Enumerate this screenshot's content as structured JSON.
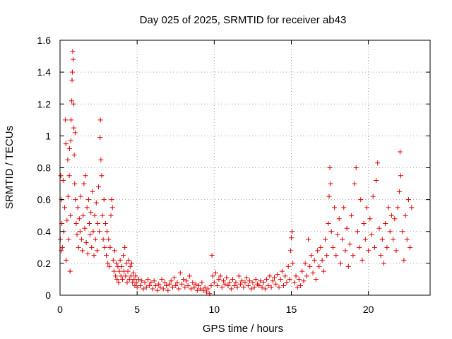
{
  "chart_data": {
    "type": "scatter",
    "title": "Day 025 of 2025, SRMTID for receiver ab43",
    "xlabel": "GPS time / hours",
    "ylabel": "SRMTID / TECUs",
    "xlim": [
      0,
      24
    ],
    "ylim": [
      0,
      1.6
    ],
    "xticks": [
      0,
      5,
      10,
      15,
      20
    ],
    "xtick_labels": [
      "0",
      "5",
      "10",
      "15",
      "20"
    ],
    "yticks": [
      0,
      0.2,
      0.4,
      0.6,
      0.8,
      1,
      1.2,
      1.4,
      1.6
    ],
    "ytick_labels": [
      "0",
      "0.2",
      "0.4",
      "0.6",
      "0.8",
      "1",
      "1.2",
      "1.4",
      "1.6"
    ],
    "grid": true,
    "marker": "plus",
    "color": "#e00000",
    "series": [
      {
        "name": "SRMTID",
        "points": [
          [
            0.02,
            0.35
          ],
          [
            0.05,
            0.75
          ],
          [
            0.08,
            0.28
          ],
          [
            0.1,
            0.6
          ],
          [
            0.12,
            0.45
          ],
          [
            0.15,
            0.3
          ],
          [
            0.2,
            0.72
          ],
          [
            0.25,
            0.4
          ],
          [
            0.3,
            0.55
          ],
          [
            0.35,
            1.1
          ],
          [
            0.38,
            0.95
          ],
          [
            0.4,
            0.22
          ],
          [
            0.45,
            0.47
          ],
          [
            0.5,
            0.85
          ],
          [
            0.52,
            0.62
          ],
          [
            0.55,
            0.35
          ],
          [
            0.6,
            0.75
          ],
          [
            0.62,
            0.92
          ],
          [
            0.65,
            0.15
          ],
          [
            0.68,
            0.5
          ],
          [
            0.7,
            0.97
          ],
          [
            0.72,
            1.1
          ],
          [
            0.75,
            1.22
          ],
          [
            0.78,
            1.35
          ],
          [
            0.8,
            1.4
          ],
          [
            0.82,
            1.53
          ],
          [
            0.85,
            1.48
          ],
          [
            0.88,
            1.2
          ],
          [
            0.9,
            1.05
          ],
          [
            0.92,
            0.88
          ],
          [
            0.95,
            0.7
          ],
          [
            0.98,
            1.02
          ],
          [
            1.0,
            0.6
          ],
          [
            1.05,
            0.45
          ],
          [
            1.1,
            0.38
          ],
          [
            1.15,
            0.55
          ],
          [
            1.2,
            0.3
          ],
          [
            1.25,
            0.48
          ],
          [
            1.3,
            0.4
          ],
          [
            1.35,
            0.62
          ],
          [
            1.4,
            0.35
          ],
          [
            1.45,
            0.28
          ],
          [
            1.5,
            0.5
          ],
          [
            1.55,
            0.7
          ],
          [
            1.6,
            0.42
          ],
          [
            1.65,
            0.75
          ],
          [
            1.7,
            0.33
          ],
          [
            1.75,
            0.55
          ],
          [
            1.8,
            0.26
          ],
          [
            1.85,
            0.6
          ],
          [
            1.9,
            0.45
          ],
          [
            1.95,
            0.38
          ],
          [
            2.0,
            0.52
          ],
          [
            2.05,
            0.3
          ],
          [
            2.1,
            0.65
          ],
          [
            2.15,
            0.4
          ],
          [
            2.2,
            0.25
          ],
          [
            2.25,
            0.5
          ],
          [
            2.3,
            0.35
          ],
          [
            2.35,
            0.58
          ],
          [
            2.4,
            0.28
          ],
          [
            2.45,
            0.45
          ],
          [
            2.5,
            0.68
          ],
          [
            2.55,
            0.4
          ],
          [
            2.6,
            0.99
          ],
          [
            2.62,
            1.1
          ],
          [
            2.65,
            0.85
          ],
          [
            2.7,
            0.75
          ],
          [
            2.75,
            0.5
          ],
          [
            2.8,
            0.35
          ],
          [
            2.85,
            0.6
          ],
          [
            2.9,
            0.3
          ],
          [
            2.95,
            0.45
          ],
          [
            3.0,
            0.25
          ],
          [
            3.05,
            0.4
          ],
          [
            3.1,
            0.2
          ],
          [
            3.15,
            0.35
          ],
          [
            3.2,
            0.18
          ],
          [
            3.25,
            0.3
          ],
          [
            3.3,
            0.5
          ],
          [
            3.35,
            0.6
          ],
          [
            3.4,
            0.55
          ],
          [
            3.45,
            0.22
          ],
          [
            3.5,
            0.15
          ],
          [
            3.55,
            0.28
          ],
          [
            3.6,
            0.12
          ],
          [
            3.65,
            0.2
          ],
          [
            3.7,
            0.1
          ],
          [
            3.75,
            0.18
          ],
          [
            3.8,
            0.08
          ],
          [
            3.85,
            0.15
          ],
          [
            3.9,
            0.22
          ],
          [
            3.95,
            0.12
          ],
          [
            4.0,
            0.18
          ],
          [
            4.05,
            0.1
          ],
          [
            4.1,
            0.25
          ],
          [
            4.15,
            0.15
          ],
          [
            4.2,
            0.3
          ],
          [
            4.25,
            0.12
          ],
          [
            4.3,
            0.2
          ],
          [
            4.35,
            0.08
          ],
          [
            4.4,
            0.15
          ],
          [
            4.45,
            0.22
          ],
          [
            4.5,
            0.1
          ],
          [
            4.55,
            0.18
          ],
          [
            4.6,
            0.12
          ],
          [
            4.65,
            0.2
          ],
          [
            4.7,
            0.08
          ],
          [
            4.75,
            0.14
          ],
          [
            4.8,
            0.1
          ],
          [
            4.85,
            0.06
          ],
          [
            4.9,
            0.12
          ],
          [
            4.95,
            0.08
          ],
          [
            5.0,
            0.05
          ],
          [
            5.1,
            0.1
          ],
          [
            5.2,
            0.06
          ],
          [
            5.3,
            0.09
          ],
          [
            5.4,
            0.04
          ],
          [
            5.5,
            0.08
          ],
          [
            5.6,
            0.05
          ],
          [
            5.7,
            0.1
          ],
          [
            5.8,
            0.06
          ],
          [
            5.9,
            0.08
          ],
          [
            6.0,
            0.04
          ],
          [
            6.1,
            0.09
          ],
          [
            6.2,
            0.06
          ],
          [
            6.3,
            0.03
          ],
          [
            6.4,
            0.07
          ],
          [
            6.5,
            0.05
          ],
          [
            6.6,
            0.1
          ],
          [
            6.7,
            0.04
          ],
          [
            6.8,
            0.08
          ],
          [
            6.9,
            0.06
          ],
          [
            7.0,
            0.03
          ],
          [
            7.1,
            0.07
          ],
          [
            7.2,
            0.09
          ],
          [
            7.3,
            0.05
          ],
          [
            7.4,
            0.11
          ],
          [
            7.5,
            0.06
          ],
          [
            7.6,
            0.08
          ],
          [
            7.7,
            0.04
          ],
          [
            7.8,
            0.14
          ],
          [
            7.9,
            0.07
          ],
          [
            8.0,
            0.1
          ],
          [
            8.1,
            0.05
          ],
          [
            8.2,
            0.09
          ],
          [
            8.3,
            0.06
          ],
          [
            8.4,
            0.12
          ],
          [
            8.5,
            0.04
          ],
          [
            8.6,
            0.08
          ],
          [
            8.7,
            0.05
          ],
          [
            8.8,
            0.07
          ],
          [
            8.9,
            0.03
          ],
          [
            9.0,
            0.06
          ],
          [
            9.1,
            0.04
          ],
          [
            9.2,
            0.08
          ],
          [
            9.3,
            0.03
          ],
          [
            9.4,
            0.05
          ],
          [
            9.5,
            0.02
          ],
          [
            9.6,
            0.04
          ],
          [
            9.7,
            0.01
          ],
          [
            9.8,
            0.06
          ],
          [
            9.85,
            0.25
          ],
          [
            9.9,
            0.12
          ],
          [
            10.0,
            0.08
          ],
          [
            10.1,
            0.14
          ],
          [
            10.2,
            0.06
          ],
          [
            10.3,
            0.1
          ],
          [
            10.4,
            0.12
          ],
          [
            10.5,
            0.05
          ],
          [
            10.6,
            0.09
          ],
          [
            10.7,
            0.07
          ],
          [
            10.8,
            0.11
          ],
          [
            10.9,
            0.06
          ],
          [
            11.0,
            0.08
          ],
          [
            11.1,
            0.04
          ],
          [
            11.2,
            0.1
          ],
          [
            11.3,
            0.06
          ],
          [
            11.4,
            0.08
          ],
          [
            11.5,
            0.05
          ],
          [
            11.6,
            0.12
          ],
          [
            11.7,
            0.07
          ],
          [
            11.8,
            0.09
          ],
          [
            11.9,
            0.05
          ],
          [
            12.0,
            0.08
          ],
          [
            12.1,
            0.11
          ],
          [
            12.2,
            0.06
          ],
          [
            12.3,
            0.09
          ],
          [
            12.4,
            0.04
          ],
          [
            12.5,
            0.08
          ],
          [
            12.6,
            0.05
          ],
          [
            12.7,
            0.1
          ],
          [
            12.8,
            0.07
          ],
          [
            12.9,
            0.06
          ],
          [
            13.0,
            0.09
          ],
          [
            13.1,
            0.05
          ],
          [
            13.2,
            0.08
          ],
          [
            13.3,
            0.04
          ],
          [
            13.4,
            0.1
          ],
          [
            13.5,
            0.06
          ],
          [
            13.6,
            0.12
          ],
          [
            13.7,
            0.05
          ],
          [
            13.8,
            0.09
          ],
          [
            13.9,
            0.11
          ],
          [
            14.0,
            0.07
          ],
          [
            14.1,
            0.13
          ],
          [
            14.2,
            0.05
          ],
          [
            14.3,
            0.1
          ],
          [
            14.4,
            0.15
          ],
          [
            14.5,
            0.06
          ],
          [
            14.6,
            0.12
          ],
          [
            14.7,
            0.08
          ],
          [
            14.8,
            0.18
          ],
          [
            14.9,
            0.1
          ],
          [
            14.95,
            0.28
          ],
          [
            15.0,
            0.36
          ],
          [
            15.05,
            0.4
          ],
          [
            15.1,
            0.2
          ],
          [
            15.2,
            0.08
          ],
          [
            15.3,
            0.12
          ],
          [
            15.4,
            0.05
          ],
          [
            15.5,
            0.1
          ],
          [
            15.6,
            0.06
          ],
          [
            15.7,
            0.15
          ],
          [
            15.8,
            0.09
          ],
          [
            15.9,
            0.2
          ],
          [
            16.0,
            0.12
          ],
          [
            16.1,
            0.35
          ],
          [
            16.2,
            0.18
          ],
          [
            16.3,
            0.25
          ],
          [
            16.4,
            0.14
          ],
          [
            16.5,
            0.22
          ],
          [
            16.6,
            0.1
          ],
          [
            16.7,
            0.28
          ],
          [
            16.8,
            0.18
          ],
          [
            16.9,
            0.3
          ],
          [
            17.0,
            0.22
          ],
          [
            17.1,
            0.15
          ],
          [
            17.2,
            0.35
          ],
          [
            17.3,
            0.25
          ],
          [
            17.4,
            0.45
          ],
          [
            17.45,
            0.62
          ],
          [
            17.5,
            0.8
          ],
          [
            17.55,
            0.7
          ],
          [
            17.6,
            0.4
          ],
          [
            17.7,
            0.3
          ],
          [
            17.8,
            0.55
          ],
          [
            17.9,
            0.25
          ],
          [
            18.0,
            0.38
          ],
          [
            18.1,
            0.48
          ],
          [
            18.2,
            0.2
          ],
          [
            18.3,
            0.35
          ],
          [
            18.4,
            0.55
          ],
          [
            18.5,
            0.28
          ],
          [
            18.6,
            0.42
          ],
          [
            18.7,
            0.18
          ],
          [
            18.8,
            0.32
          ],
          [
            18.9,
            0.5
          ],
          [
            19.0,
            0.25
          ],
          [
            19.1,
            0.7
          ],
          [
            19.2,
            0.8
          ],
          [
            19.3,
            0.4
          ],
          [
            19.4,
            0.3
          ],
          [
            19.5,
            0.6
          ],
          [
            19.6,
            0.22
          ],
          [
            19.7,
            0.45
          ],
          [
            19.8,
            0.35
          ],
          [
            19.9,
            0.55
          ],
          [
            20.0,
            0.28
          ],
          [
            20.1,
            0.48
          ],
          [
            20.2,
            0.38
          ],
          [
            20.3,
            0.62
          ],
          [
            20.4,
            0.3
          ],
          [
            20.5,
            0.72
          ],
          [
            20.6,
            0.83
          ],
          [
            20.7,
            0.42
          ],
          [
            20.8,
            0.25
          ],
          [
            20.9,
            0.35
          ],
          [
            21.0,
            0.2
          ],
          [
            21.1,
            0.45
          ],
          [
            21.2,
            0.3
          ],
          [
            21.3,
            0.55
          ],
          [
            21.4,
            0.4
          ],
          [
            21.5,
            0.5
          ],
          [
            21.6,
            0.35
          ],
          [
            21.7,
            0.48
          ],
          [
            21.8,
            0.28
          ],
          [
            21.9,
            0.55
          ],
          [
            22.0,
            0.65
          ],
          [
            22.05,
            0.9
          ],
          [
            22.1,
            0.75
          ],
          [
            22.2,
            0.4
          ],
          [
            22.3,
            0.22
          ],
          [
            22.4,
            0.5
          ],
          [
            22.5,
            0.35
          ],
          [
            22.6,
            0.6
          ],
          [
            22.7,
            0.3
          ],
          [
            22.8,
            0.55
          ]
        ]
      }
    ]
  }
}
